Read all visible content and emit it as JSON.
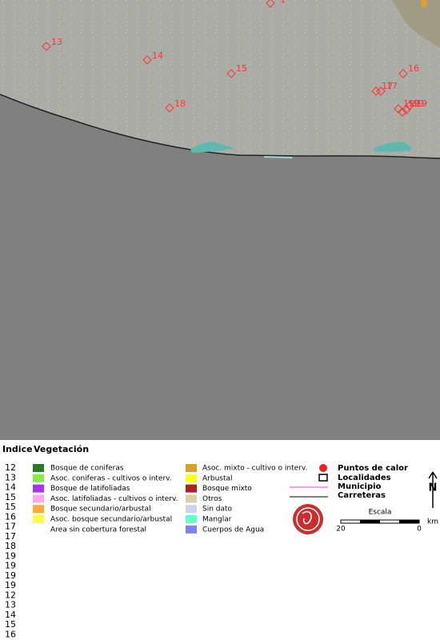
{
  "map": {
    "points": [
      "1",
      "13",
      "14",
      "15",
      "16",
      "17",
      "17",
      "18",
      "19",
      "19",
      "19",
      "19"
    ]
  },
  "legend": {
    "index_title": "Indice",
    "vegetation_title": "Vegetación",
    "indices": [
      "12",
      "13",
      "14",
      "15",
      "15",
      "16",
      "17",
      "17",
      "18",
      "19",
      "19",
      "19",
      "19",
      "12",
      "13",
      "14",
      "15",
      "16"
    ],
    "vegetation": [
      "Bosque de coniferas",
      "Asoc. coniferas - cultivos o interv.",
      "Bosque de latifoliadas",
      "Asoc. latifoliadas - cultivos o interv.",
      "Bosque secundario/arbustal",
      "Asoc. bosque secundario/arbustal",
      "Area sin cobertura forestal",
      "Asoc. mixto - cultivo o interv.",
      "Arbustal",
      "Bosque mixto",
      "Otros",
      "Sin dato",
      "Manglar",
      "Cuerpos de Agua"
    ],
    "symbols": [
      "Puntos de calor",
      "Localidades",
      "Municipio",
      "Carreteras"
    ],
    "scale": {
      "title": "Escala",
      "left": "20",
      "right": "0",
      "unit": "km"
    },
    "north": "N"
  }
}
